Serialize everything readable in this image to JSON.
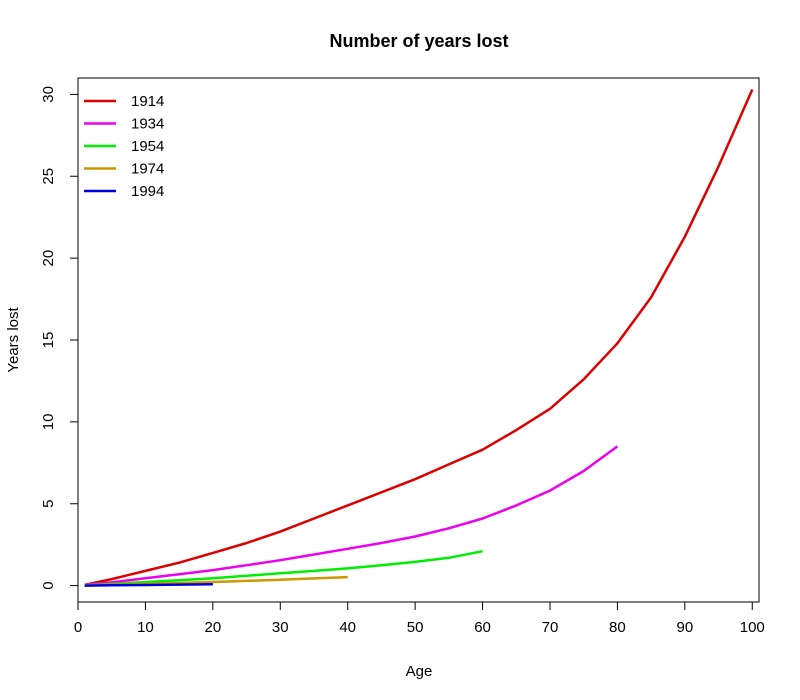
{
  "chart_data": {
    "type": "line",
    "title": "Number of years lost",
    "xlabel": "Age",
    "ylabel": "Years lost",
    "xlim": [
      0,
      101
    ],
    "ylim": [
      -1,
      31
    ],
    "xticks": [
      0,
      10,
      20,
      30,
      40,
      50,
      60,
      70,
      80,
      90,
      100
    ],
    "yticks": [
      0,
      5,
      10,
      15,
      20,
      25,
      30
    ],
    "grid": false,
    "legend_position": "top-left",
    "series": [
      {
        "name": "1914",
        "color": "#dd0000",
        "x": [
          1,
          5,
          10,
          15,
          20,
          25,
          30,
          35,
          40,
          45,
          50,
          55,
          60,
          65,
          70,
          75,
          80,
          85,
          90,
          95,
          100
        ],
        "y": [
          0.05,
          0.4,
          0.9,
          1.4,
          2.0,
          2.6,
          3.3,
          4.1,
          4.9,
          5.7,
          6.5,
          7.4,
          8.3,
          9.5,
          10.8,
          12.6,
          14.8,
          17.6,
          21.3,
          25.6,
          30.3
        ]
      },
      {
        "name": "1934",
        "color": "#ee00ee",
        "x": [
          1,
          5,
          10,
          15,
          20,
          25,
          30,
          35,
          40,
          45,
          50,
          55,
          60,
          65,
          70,
          75,
          80
        ],
        "y": [
          0.05,
          0.2,
          0.45,
          0.7,
          0.95,
          1.25,
          1.55,
          1.9,
          2.25,
          2.6,
          3.0,
          3.5,
          4.1,
          4.9,
          5.8,
          7.0,
          8.5
        ]
      },
      {
        "name": "1954",
        "color": "#00ee00",
        "x": [
          1,
          5,
          10,
          15,
          20,
          25,
          30,
          35,
          40,
          45,
          50,
          55,
          60
        ],
        "y": [
          0.02,
          0.1,
          0.22,
          0.33,
          0.45,
          0.6,
          0.75,
          0.9,
          1.05,
          1.25,
          1.45,
          1.7,
          2.1
        ]
      },
      {
        "name": "1974",
        "color": "#cc9900",
        "x": [
          1,
          5,
          10,
          15,
          20,
          25,
          30,
          35,
          40
        ],
        "y": [
          0.01,
          0.05,
          0.1,
          0.16,
          0.22,
          0.29,
          0.36,
          0.44,
          0.52
        ]
      },
      {
        "name": "1994",
        "color": "#0000dd",
        "x": [
          1,
          5,
          10,
          15,
          20
        ],
        "y": [
          0.0,
          0.02,
          0.04,
          0.06,
          0.08
        ]
      }
    ]
  }
}
